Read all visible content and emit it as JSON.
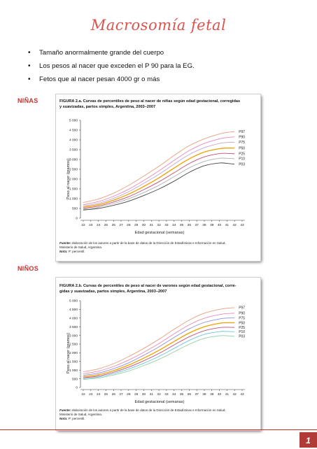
{
  "doc": {
    "title": "Macrosomía fetal",
    "bullets": [
      "Tamaño anormalmente grande del cuerpo",
      "Los pesos al nacer que exceden el P 90 para la EG.",
      "Fetos que al nacer pesan 4000 gr o más"
    ],
    "section_girls": "NIÑAS",
    "section_boys": "NIÑOS",
    "page_number": "1"
  },
  "figures": [
    {
      "title_line1": "FIGURA 2.a. Curvas de percentiles de peso al nacer de niñas según edad gestacional, corregidas",
      "title_line2": "y suavizadas, partos simples, Argentina, 2003–2007",
      "ylabel": "Peso al nacer (gramos)",
      "xlabel": "Edad gestacional (semanas)",
      "yticks": [
        "0",
        "500",
        "1 000",
        "1 500",
        "2 000",
        "2 500",
        "3 000",
        "3 500",
        "4 000",
        "4 500",
        "5 000"
      ],
      "xticks": [
        "22",
        "23",
        "24",
        "25",
        "26",
        "27",
        "28",
        "29",
        "30",
        "31",
        "32",
        "33",
        "34",
        "35",
        "36",
        "37",
        "38",
        "39",
        "40",
        "41",
        "42",
        "43"
      ],
      "source_bold": "Fuente:",
      "source_line1": " elaboración de los autores a partir de la base de datos de la Dirección de Estadísticas e Información en Salud,",
      "source_line2": "Ministerio de Salud, Argentina.",
      "note_bold": "Nota:",
      "note_text": " P: percentil."
    },
    {
      "title_line1": "FIGURA 2.b. Curvas de percentiles de peso al nacer de varones según edad gestacional, corre-",
      "title_line2": "gidas y suavizadas, partos simples, Argentina, 2003–2007",
      "ylabel": "Peso al nacer (gramos)",
      "xlabel": "Edad gestacional (semanas)",
      "yticks": [
        "0",
        "500",
        "1 000",
        "1 500",
        "2 000",
        "2 500",
        "3 000",
        "3 500",
        "4 000",
        "4 500",
        "5 000"
      ],
      "xticks": [
        "22",
        "23",
        "24",
        "25",
        "26",
        "27",
        "28",
        "29",
        "30",
        "31",
        "32",
        "33",
        "34",
        "35",
        "36",
        "37",
        "38",
        "39",
        "40",
        "41",
        "42",
        "43"
      ],
      "source_bold": "Fuente:",
      "source_line1": " elaboración de los autores a partir de la base de datos de la Dirección de Estadísticas e Información en Salud,",
      "source_line2": "Ministerio de Salud, Argentina.",
      "note_bold": "Nota:",
      "note_text": " P: percentil."
    }
  ],
  "chart_data": [
    {
      "type": "line",
      "x": [
        22,
        24,
        26,
        28,
        30,
        32,
        34,
        36,
        38,
        40,
        41,
        42
      ],
      "xlim": [
        22,
        43
      ],
      "ylim": [
        0,
        5000
      ],
      "grid": false,
      "legend": "right",
      "series": [
        {
          "name": "P97",
          "color": "#e8a07a",
          "values": [
            800,
            980,
            1280,
            1680,
            2150,
            2650,
            3200,
            3700,
            4050,
            4300,
            4380,
            4420
          ]
        },
        {
          "name": "P90",
          "color": "#e58ab8",
          "values": [
            690,
            850,
            1120,
            1480,
            1930,
            2420,
            2950,
            3450,
            3820,
            4050,
            4120,
            4150
          ]
        },
        {
          "name": "P75",
          "color": "#c0a8d8",
          "values": [
            630,
            760,
            1010,
            1350,
            1780,
            2240,
            2760,
            3250,
            3600,
            3820,
            3870,
            3880
          ]
        },
        {
          "name": "P50",
          "color": "#f0a000",
          "values": [
            570,
            690,
            920,
            1230,
            1620,
            2060,
            2560,
            3030,
            3380,
            3550,
            3580,
            3580
          ]
        },
        {
          "name": "P25",
          "color": "#c05070",
          "values": [
            510,
            620,
            830,
            1100,
            1460,
            1860,
            2320,
            2790,
            3130,
            3300,
            3310,
            3290
          ]
        },
        {
          "name": "P10",
          "color": "#b0b0b0",
          "values": [
            460,
            560,
            750,
            990,
            1310,
            1680,
            2120,
            2570,
            2900,
            3060,
            3060,
            3040
          ]
        },
        {
          "name": "P03",
          "color": "#444444",
          "values": [
            420,
            500,
            660,
            870,
            1160,
            1490,
            1890,
            2340,
            2680,
            2820,
            2800,
            2760
          ]
        }
      ]
    },
    {
      "type": "line",
      "x": [
        22,
        24,
        26,
        28,
        30,
        32,
        34,
        36,
        38,
        40,
        41,
        42
      ],
      "xlim": [
        22,
        43
      ],
      "ylim": [
        0,
        5000
      ],
      "grid": false,
      "legend": "right",
      "series": [
        {
          "name": "P97",
          "color": "#e8a07a",
          "values": [
            900,
            1070,
            1370,
            1780,
            2250,
            2780,
            3350,
            3880,
            4280,
            4500,
            4570,
            4600
          ]
        },
        {
          "name": "P90",
          "color": "#e58ab8",
          "values": [
            790,
            940,
            1210,
            1580,
            2030,
            2530,
            3090,
            3610,
            3990,
            4200,
            4260,
            4280
          ]
        },
        {
          "name": "P75",
          "color": "#9090d8",
          "values": [
            700,
            830,
            1080,
            1420,
            1860,
            2340,
            2880,
            3380,
            3750,
            3950,
            4000,
            4010
          ]
        },
        {
          "name": "P50",
          "color": "#f0a000",
          "values": [
            620,
            740,
            970,
            1290,
            1690,
            2140,
            2650,
            3140,
            3500,
            3700,
            3730,
            3730
          ]
        },
        {
          "name": "P25",
          "color": "#c05070",
          "values": [
            560,
            660,
            880,
            1170,
            1540,
            1960,
            2450,
            2920,
            3270,
            3450,
            3470,
            3460
          ]
        },
        {
          "name": "P10",
          "color": "#70c0d8",
          "values": [
            510,
            600,
            800,
            1060,
            1400,
            1790,
            2250,
            2710,
            3060,
            3220,
            3230,
            3210
          ]
        },
        {
          "name": "P03",
          "color": "#90d0a0",
          "values": [
            460,
            540,
            720,
            950,
            1260,
            1620,
            2050,
            2490,
            2830,
            2980,
            2980,
            2950
          ]
        }
      ]
    }
  ]
}
